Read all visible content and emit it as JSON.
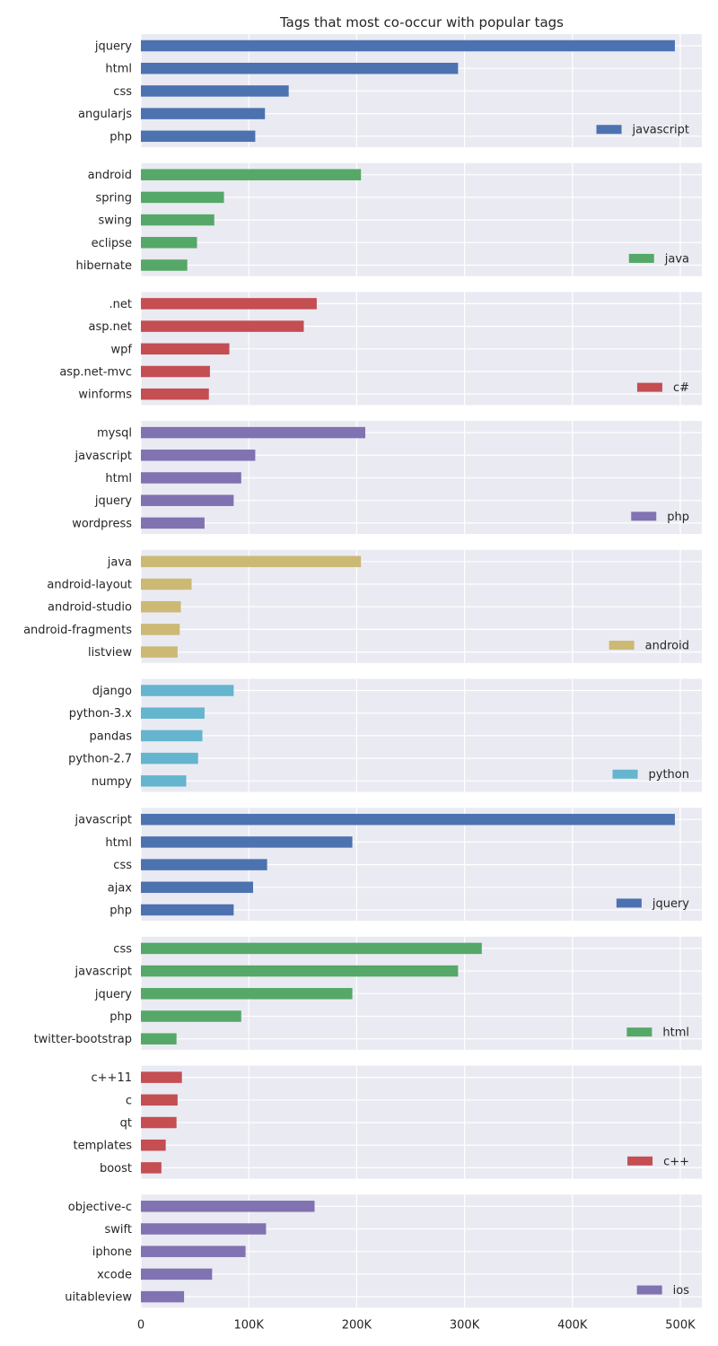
{
  "chart_data": {
    "type": "bar",
    "orientation": "horizontal",
    "title": "Tags that most co-occur with popular tags",
    "x_tick_labels": [
      "0",
      "100K",
      "200K",
      "300K",
      "400K",
      "500K"
    ],
    "x_tick_values": [
      0,
      100000,
      200000,
      300000,
      400000,
      500000
    ],
    "xlim": [
      0,
      520000
    ],
    "grid": true,
    "legend_position": "lower-right",
    "panels": [
      {
        "series": "javascript",
        "color": "#4c72b0",
        "categories": [
          "jquery",
          "html",
          "css",
          "angularjs",
          "php"
        ],
        "values": [
          495000,
          294000,
          137000,
          115000,
          106000
        ]
      },
      {
        "series": "java",
        "color": "#55a868",
        "categories": [
          "android",
          "spring",
          "swing",
          "eclipse",
          "hibernate"
        ],
        "values": [
          204000,
          77000,
          68000,
          52000,
          43000
        ]
      },
      {
        "series": "c#",
        "color": "#c44e52",
        "categories": [
          ".net",
          "asp.net",
          "wpf",
          "asp.net-mvc",
          "winforms"
        ],
        "values": [
          163000,
          151000,
          82000,
          64000,
          63000
        ]
      },
      {
        "series": "php",
        "color": "#8172b2",
        "categories": [
          "mysql",
          "javascript",
          "html",
          "jquery",
          "wordpress"
        ],
        "values": [
          208000,
          106000,
          93000,
          86000,
          59000
        ]
      },
      {
        "series": "android",
        "color": "#ccb974",
        "categories": [
          "java",
          "android-layout",
          "android-studio",
          "android-fragments",
          "listview"
        ],
        "values": [
          204000,
          47000,
          37000,
          36000,
          34000
        ]
      },
      {
        "series": "python",
        "color": "#64b5cd",
        "categories": [
          "django",
          "python-3.x",
          "pandas",
          "python-2.7",
          "numpy"
        ],
        "values": [
          86000,
          59000,
          57000,
          53000,
          42000
        ]
      },
      {
        "series": "jquery",
        "color": "#4c72b0",
        "categories": [
          "javascript",
          "html",
          "css",
          "ajax",
          "php"
        ],
        "values": [
          495000,
          196000,
          117000,
          104000,
          86000
        ]
      },
      {
        "series": "html",
        "color": "#55a868",
        "categories": [
          "css",
          "javascript",
          "jquery",
          "php",
          "twitter-bootstrap"
        ],
        "values": [
          316000,
          294000,
          196000,
          93000,
          33000
        ]
      },
      {
        "series": "c++",
        "color": "#c44e52",
        "categories": [
          "c++11",
          "c",
          "qt",
          "templates",
          "boost"
        ],
        "values": [
          38000,
          34000,
          33000,
          23000,
          19000
        ]
      },
      {
        "series": "ios",
        "color": "#8172b2",
        "categories": [
          "objective-c",
          "swift",
          "iphone",
          "xcode",
          "uitableview"
        ],
        "values": [
          161000,
          116000,
          97000,
          66000,
          40000
        ]
      }
    ]
  }
}
